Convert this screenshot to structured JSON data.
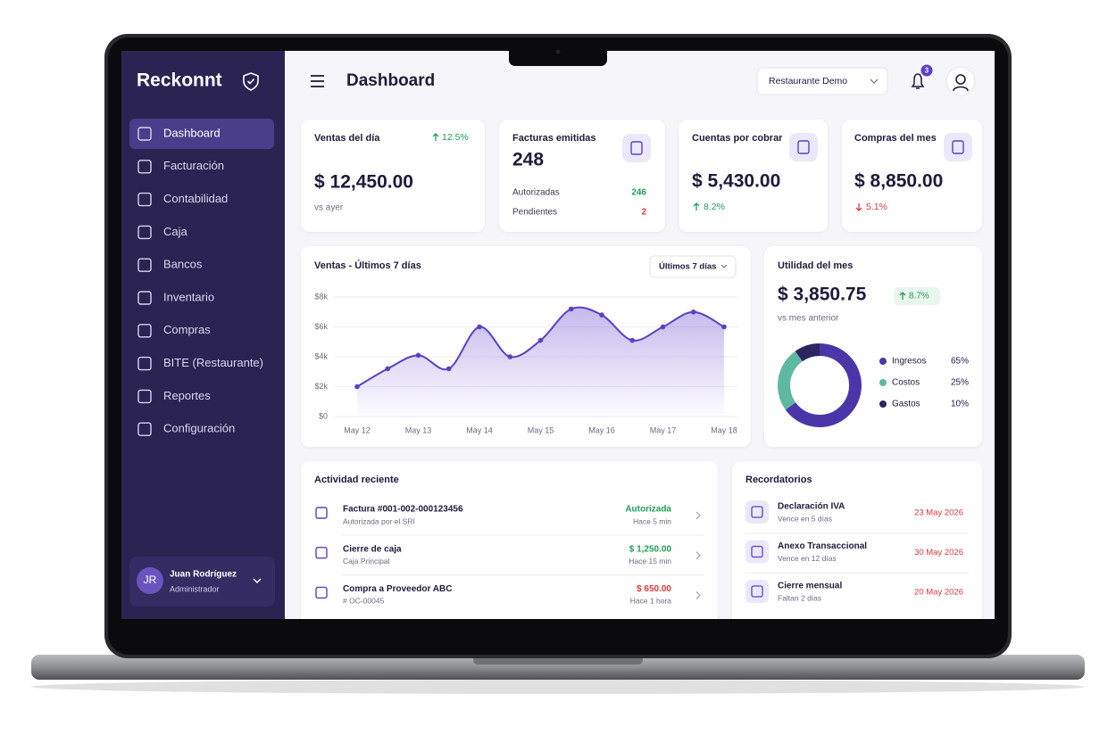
{
  "brand": "Reckonnt",
  "nav": [
    "Dashboard",
    "Facturación",
    "Contabilidad",
    "Caja",
    "Bancos",
    "Inventario",
    "Compras",
    "BITE (Restaurante)",
    "Reportes",
    "Configuración"
  ],
  "user": {
    "initials": "JR",
    "name": "Juan Rodríguez",
    "role": "Administrador"
  },
  "header": {
    "title": "Dashboard",
    "company": "Restaurante Demo",
    "notifications": 3
  },
  "cards": [
    {
      "title": "Ventas del día",
      "value": "$ 12,450.00",
      "change": "12.5%",
      "trend": "up",
      "note": "vs ayer"
    },
    {
      "title": "Facturas emitidas",
      "value": 248,
      "rows": [
        {
          "label": "Autorizadas",
          "value": 246,
          "color": "#1f9d55"
        },
        {
          "label": "Pendientes",
          "value": 2,
          "color": "#d93a3a"
        }
      ]
    },
    {
      "title": "Cuentas por cobrar",
      "value": "$ 5,430.00",
      "change": "8.2%",
      "trend": "up"
    },
    {
      "title": "Compras del mes",
      "value": "$ 8,850.00",
      "change": "5.1%",
      "trend": "down"
    }
  ],
  "chart_data": [
    {
      "type": "line",
      "title": "Ventas - Últimos 7 días",
      "filter": "Últimos 7 días",
      "categories": [
        "May 12",
        null,
        "May 13",
        null,
        "May 14",
        null,
        "May 15",
        null,
        "May 16",
        null,
        "May 17",
        null,
        "May 18"
      ],
      "values": [
        2000,
        3200,
        4100,
        3200,
        6000,
        4000,
        5100,
        7200,
        6800,
        5100,
        6000,
        7000,
        6000
      ],
      "color": "#5b3fc4",
      "ylim": [
        0,
        8000
      ],
      "yticks": [
        {
          "value": 0,
          "label": "$0"
        },
        {
          "value": 2000,
          "label": "$2k"
        },
        {
          "value": 4000,
          "label": "$4k"
        },
        {
          "value": 6000,
          "label": "$6k"
        },
        {
          "value": 8000,
          "label": "$8k"
        }
      ],
      "grid": true
    },
    {
      "type": "pie",
      "title": "Utilidad del mes",
      "amount": "$ 3,850.75",
      "change": "8.7%",
      "trend": "up",
      "note": "vs mes anterior",
      "categories": [
        "Ingresos",
        "Costos",
        "Gastos"
      ],
      "values": [
        65,
        25,
        10
      ],
      "value_labels": [
        "65%",
        "25%",
        "10%"
      ],
      "colors": [
        "#4a36a8",
        "#5fb8a2",
        "#2b2560"
      ]
    }
  ],
  "activity": {
    "title": "Actividad reciente",
    "items": [
      {
        "title": "Factura #001-002-000123456",
        "subtitle": "Autorizada por el SRI",
        "status": "Autorizada",
        "time": "Hace 5 min",
        "color": "#1f9d55"
      },
      {
        "title": "Cierre de caja",
        "subtitle": "Caja Principal",
        "status": "$ 1,250.00",
        "time": "Hace 15 min",
        "color": "#1f9d55"
      },
      {
        "title": "Compra a Proveedor ABC",
        "subtitle": "# OC-00045",
        "status": "$ 650.00",
        "time": "Hace 1 hora",
        "color": "#d93a3a"
      }
    ]
  },
  "reminders": {
    "title": "Recordatorios",
    "items": [
      {
        "title": "Declaración IVA",
        "subtitle": "Vence en 5 días",
        "date": "23 May 2026"
      },
      {
        "title": "Anexo Transaccional",
        "subtitle": "Vence en 12 días",
        "date": "30 May 2026"
      },
      {
        "title": "Cierre mensual",
        "subtitle": "Faltan 2 días",
        "date": "20 May 2026"
      }
    ]
  }
}
